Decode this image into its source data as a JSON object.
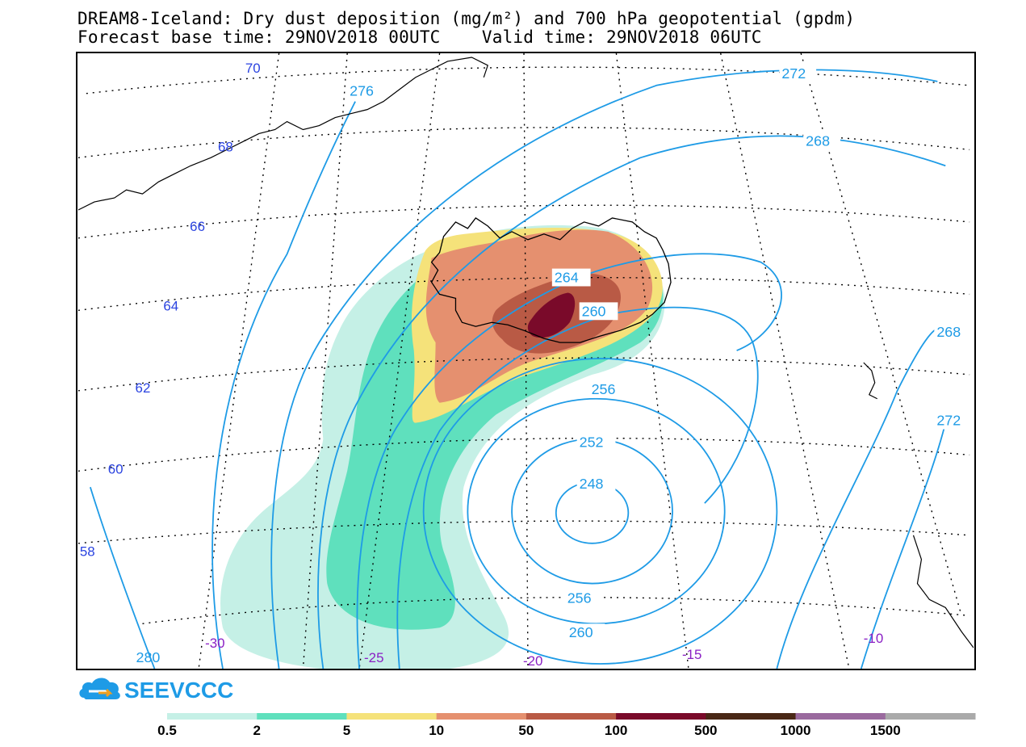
{
  "title": {
    "line1": "DREAM8-Iceland: Dry dust deposition (mg/m²) and 700 hPa geopotential (gpdm)",
    "line2": "Forecast base time: 29NOV2018 00UTC    Valid time: 29NOV2018 06UTC"
  },
  "logo": {
    "text": "SEEVCCC",
    "icon": "cloud-arrow-icon",
    "color": "#1e9be6"
  },
  "colors": {
    "contour": "#1e9be6",
    "lat_label": "#2a43e0",
    "lon_label": "#8a1fc4",
    "coast": "#000000",
    "grid": "#000000"
  },
  "latitude_labels": [
    "70",
    "68",
    "66",
    "64",
    "62",
    "60",
    "58"
  ],
  "longitude_labels": [
    "-30",
    "-25",
    "-20",
    "-15",
    "-10"
  ],
  "contour_labels": [
    "276",
    "272",
    "268",
    "264",
    "260",
    "256",
    "252",
    "248",
    "256",
    "260",
    "268",
    "272",
    "280"
  ],
  "legend": {
    "bins": [
      {
        "label": "0.5",
        "color": "#c5f0e6"
      },
      {
        "label": "2",
        "color": "#5fe0bd"
      },
      {
        "label": "5",
        "color": "#f5e27a"
      },
      {
        "label": "10",
        "color": "#e5906f"
      },
      {
        "label": "50",
        "color": "#b95a45"
      },
      {
        "label": "100",
        "color": "#7a0a2a"
      },
      {
        "label": "500",
        "color": "#4a2816"
      },
      {
        "label": "1000",
        "color": "#9a6a9e"
      },
      {
        "label": "1500",
        "color": "#aaaaaa"
      }
    ]
  }
}
